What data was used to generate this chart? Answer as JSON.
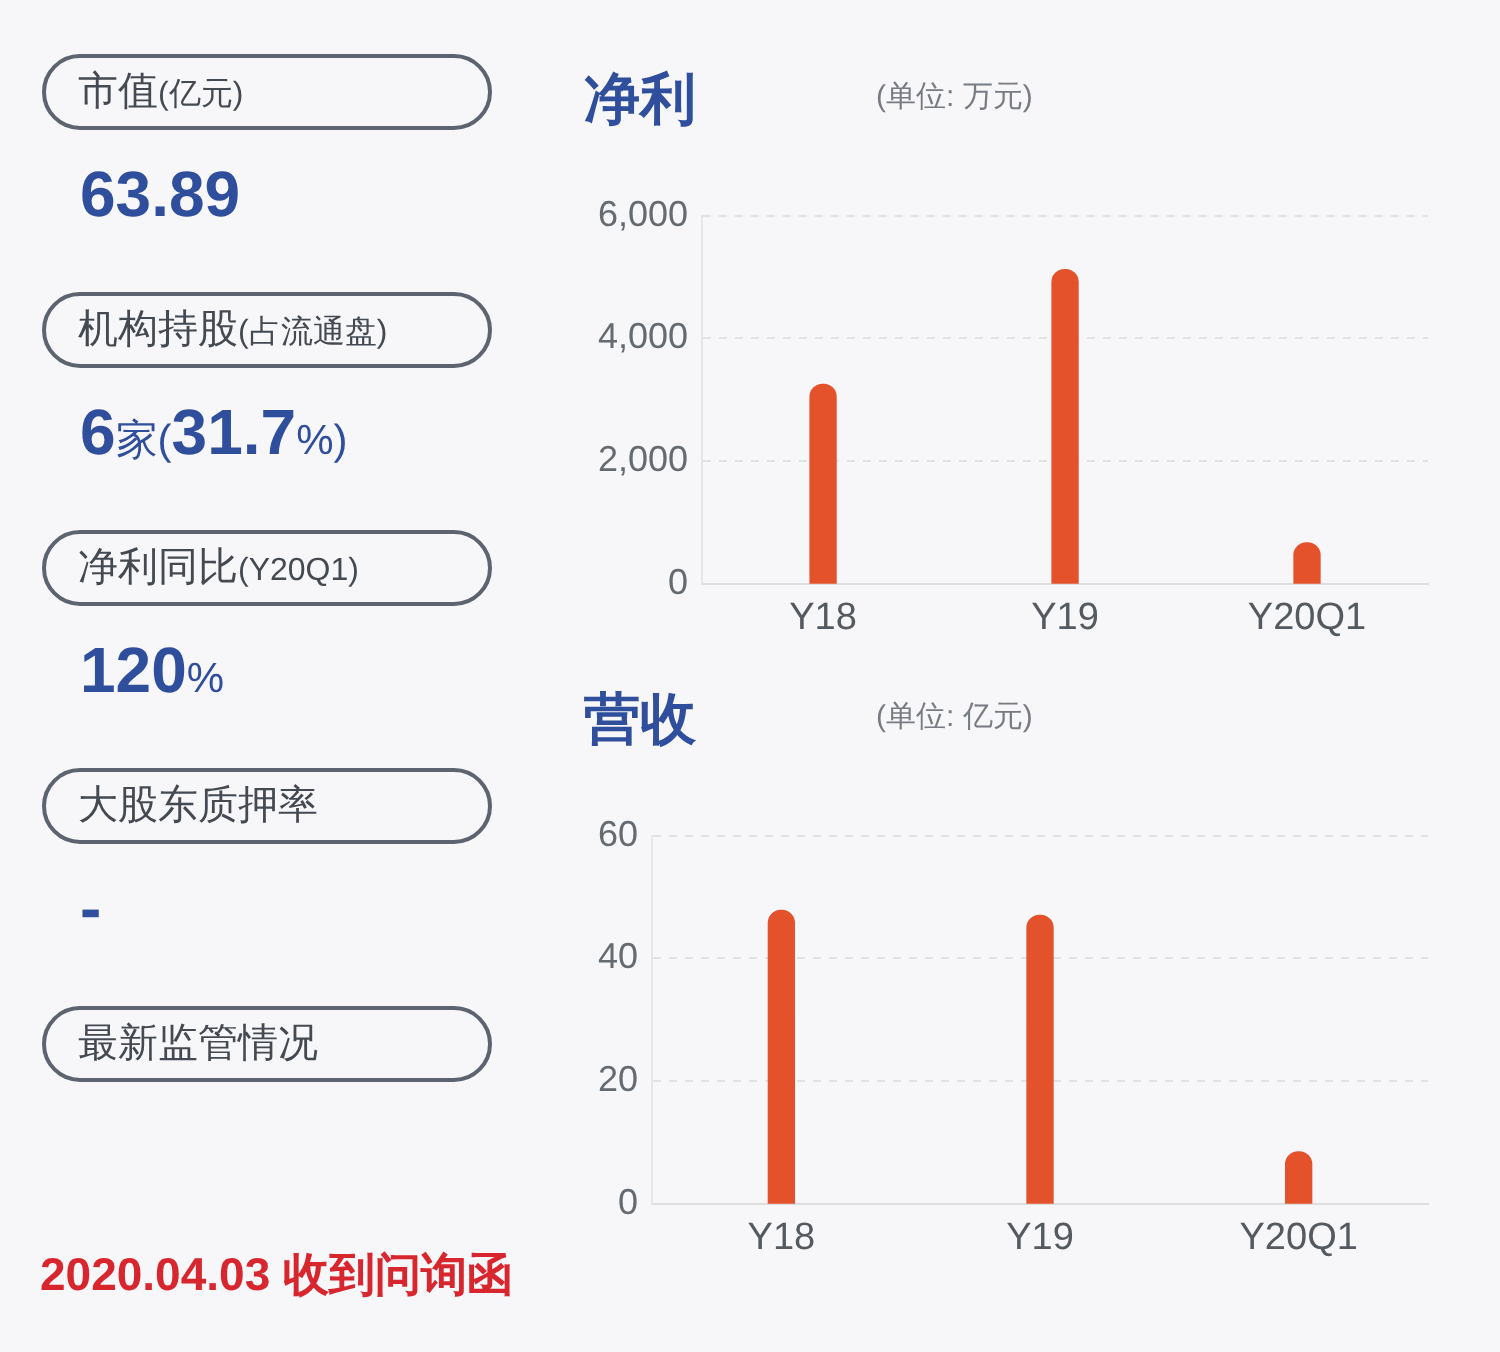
{
  "chart_data": [
    {
      "type": "other",
      "annotations": [
        "市值(亿元)",
        "63.89",
        "机构持股(占流通盘)",
        "6家(31.7%)",
        "净利同比(Y20Q1)",
        "120%",
        "大股东质押率",
        "-",
        "最新监管情况",
        "2020.04.03 收到问询函"
      ]
    },
    {
      "type": "bar",
      "title": "净利",
      "subtitle": "(单位: 万元)",
      "categories": [
        "Y18",
        "Y19",
        "Y20Q1"
      ],
      "values": [
        3250,
        5120,
        670
      ],
      "color": "#e4522b",
      "ylim": [
        0,
        6000
      ],
      "yticks": [
        0,
        {
          "value": 2000,
          "label": "2,000"
        },
        {
          "value": 4000,
          "label": "4,000"
        },
        {
          "value": 6000,
          "label": "6,000"
        }
      ],
      "grid": "y"
    },
    {
      "type": "bar",
      "title": "营收",
      "subtitle": "(单位: 亿元)",
      "categories": [
        "Y18",
        "Y19",
        "Y20Q1"
      ],
      "values": [
        47.8,
        47.0,
        8.5
      ],
      "color": "#e4522b",
      "ylim": [
        0,
        60
      ],
      "yticks": [
        0,
        20,
        40,
        60
      ],
      "grid": "y"
    }
  ]
}
